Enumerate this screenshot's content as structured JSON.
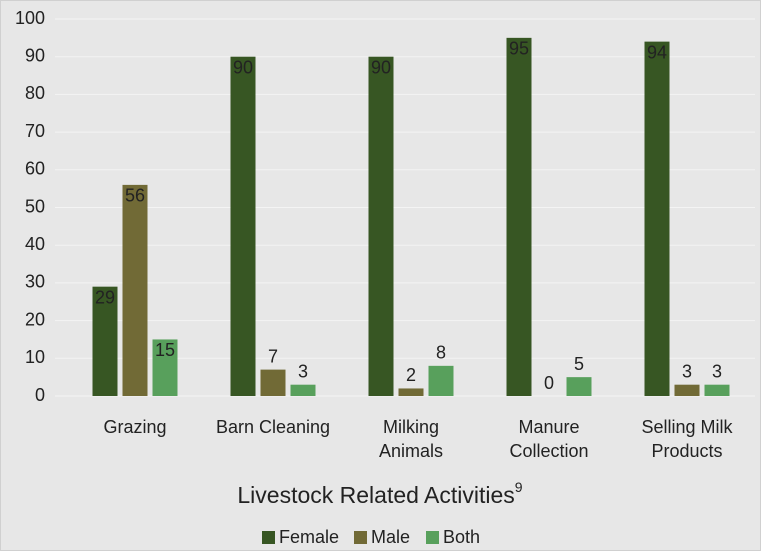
{
  "chart_data": {
    "type": "bar",
    "x_label": "Livestock Related Activities",
    "x_label_note": "9",
    "categories": [
      "Grazing",
      "Barn Cleaning",
      "Milking Animals",
      "Manure Collection",
      "Selling Milk Products"
    ],
    "series": [
      {
        "name": "Female",
        "color": "#375623",
        "values": [
          29,
          90,
          90,
          95,
          94
        ]
      },
      {
        "name": "Male",
        "color": "#716a36",
        "values": [
          56,
          7,
          2,
          0,
          3
        ]
      },
      {
        "name": "Both",
        "color": "#58a05c",
        "values": [
          15,
          3,
          8,
          5,
          3
        ]
      }
    ],
    "ylim": [
      0,
      100
    ],
    "yticks": [
      0,
      10,
      20,
      30,
      40,
      50,
      60,
      70,
      80,
      90,
      100
    ],
    "grid": true,
    "legend": "bottom",
    "data_labels": true
  }
}
